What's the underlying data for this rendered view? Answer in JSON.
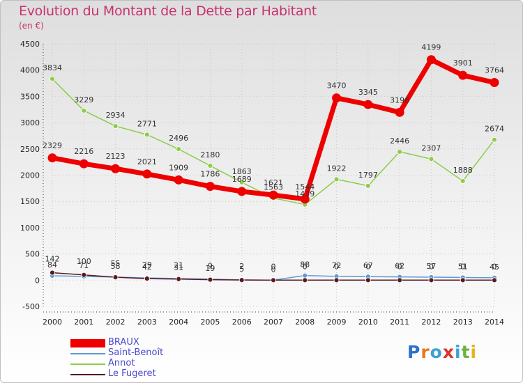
{
  "header": {
    "title": "Evolution du Montant de la Dette par Habitant",
    "subtitle": "(en €)"
  },
  "logo_text": [
    "P",
    "r",
    "o",
    "x",
    "i",
    "t",
    "i"
  ],
  "logo_colors": [
    "#2f6fd0",
    "#e8791f",
    "#3aa0d8",
    "#d8352f",
    "#3aa0d8",
    "#6cb33f",
    "#e8b31f"
  ],
  "chart_data": {
    "type": "line",
    "title": "Evolution du Montant de la Dette par Habitant",
    "subtitle": "(en €)",
    "x": [
      "2000",
      "2001",
      "2002",
      "2003",
      "2004",
      "2005",
      "2006",
      "2007",
      "2008",
      "2009",
      "2010",
      "2011",
      "2012",
      "2013",
      "2014"
    ],
    "ylim": [
      -500,
      4500
    ],
    "yticks": [
      "-500",
      "0",
      "500",
      "1000",
      "1500",
      "2000",
      "2500",
      "3000",
      "3500",
      "4000",
      "4500"
    ],
    "grid": "dotted",
    "legend_position": "bottom-left",
    "series": [
      {
        "name": "BRAUX",
        "color": "#ee0000",
        "values": [
          2329,
          2216,
          2123,
          2021,
          1909,
          1786,
          1689,
          1621,
          1544,
          3470,
          3345,
          3196,
          4199,
          3901,
          3764
        ],
        "labels": [
          "2329",
          "2216",
          "2123",
          "2021",
          "1909",
          "1786",
          "1689",
          "1621",
          "1544",
          "3470",
          "3345",
          "3196",
          "4199",
          "3901",
          "3764"
        ]
      },
      {
        "name": "Saint-Benoît",
        "color": "#5b9bd5",
        "values": [
          84,
          71,
          58,
          42,
          31,
          19,
          5,
          0,
          88,
          72,
          67,
          62,
          57,
          51,
          45
        ],
        "labels": [
          "84",
          "71",
          "58",
          "42",
          "31",
          "19",
          "5",
          "0",
          "88",
          "72",
          "67",
          "62",
          "57",
          "51",
          "45"
        ]
      },
      {
        "name": "Annot",
        "color": "#8ccc4a",
        "values": [
          3834,
          3229,
          2934,
          2771,
          2496,
          2180,
          1863,
          1563,
          1439,
          1922,
          1797,
          2446,
          2307,
          1888,
          2674
        ],
        "labels": [
          "3834",
          "3229",
          "2934",
          "2771",
          "2496",
          "2180",
          "1863",
          "1563",
          "1439",
          "1922",
          "1797",
          "2446",
          "2307",
          "1888",
          "2674"
        ]
      },
      {
        "name": "Le Fugeret",
        "color": "#5a1a22",
        "values": [
          142,
          100,
          55,
          29,
          21,
          9,
          2,
          0,
          0,
          0,
          0,
          0,
          0,
          0,
          0
        ],
        "labels": [
          "142",
          "100",
          "55",
          "29",
          "21",
          "9",
          "2",
          "0",
          "0",
          "0",
          "0",
          "0",
          "0",
          "0",
          "0"
        ]
      }
    ]
  }
}
